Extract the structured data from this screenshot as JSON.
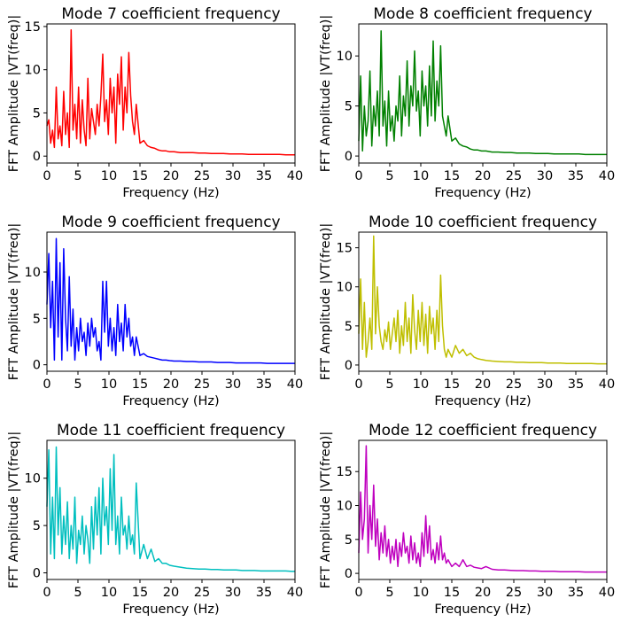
{
  "chart_data": [
    {
      "type": "line",
      "title": "Mode 7 coefficient frequency",
      "xlabel": "Frequency (Hz)",
      "ylabel": "FFT Amplitude |VT(freq)|",
      "xlim": [
        0,
        40
      ],
      "ylim": [
        -0.8,
        15.3
      ],
      "xticks": [
        0,
        5,
        10,
        15,
        20,
        25,
        30,
        35,
        40
      ],
      "yticks": [
        0,
        5,
        10,
        15
      ],
      "color": "#ff0000",
      "series": [
        {
          "x": [
            0,
            0.3,
            0.6,
            0.9,
            1.2,
            1.5,
            1.8,
            2.1,
            2.4,
            2.7,
            3.0,
            3.3,
            3.6,
            3.9,
            4.2,
            4.5,
            4.8,
            5.1,
            5.4,
            5.7,
            6.0,
            6.3,
            6.6,
            6.9,
            7.2,
            7.5,
            7.8,
            8.1,
            8.4,
            8.7,
            9.0,
            9.3,
            9.6,
            9.9,
            10.2,
            10.5,
            10.8,
            11.1,
            11.4,
            11.7,
            12.0,
            12.3,
            12.6,
            12.9,
            13.2,
            13.5,
            13.8,
            14.1,
            14.4,
            15,
            15.6,
            16.2,
            16.8,
            17.4,
            18,
            18.6,
            19.2,
            19.8,
            20.5,
            21.5,
            22.5,
            23.5,
            24.5,
            25.5,
            26.5,
            27.5,
            28.5,
            29.5,
            30.5,
            31.5,
            32.5,
            33.5,
            34.5,
            35.5,
            36.5,
            37.5,
            38.5,
            39.5,
            40
          ],
          "y": [
            3.5,
            4.2,
            1.5,
            3.0,
            1.0,
            8.0,
            2.0,
            3.5,
            1.2,
            7.5,
            2.5,
            5.0,
            1.0,
            14.6,
            3.0,
            6.0,
            2.0,
            8.0,
            1.5,
            6.5,
            3.0,
            1.2,
            9.0,
            2.0,
            5.5,
            4.0,
            2.5,
            6.0,
            3.5,
            7.0,
            11.8,
            4.0,
            6.5,
            2.5,
            9.0,
            5.0,
            8.0,
            1.5,
            9.5,
            6.0,
            11.5,
            3.0,
            8.0,
            5.0,
            12.0,
            7.0,
            4.0,
            2.5,
            6.0,
            1.5,
            1.8,
            1.2,
            1.0,
            0.9,
            0.7,
            0.6,
            0.6,
            0.5,
            0.5,
            0.4,
            0.4,
            0.4,
            0.35,
            0.35,
            0.3,
            0.3,
            0.3,
            0.25,
            0.25,
            0.25,
            0.2,
            0.2,
            0.2,
            0.2,
            0.2,
            0.2,
            0.15,
            0.15,
            0.15
          ]
        }
      ]
    },
    {
      "type": "line",
      "title": "Mode 8 coefficient frequency",
      "xlabel": "Frequency (Hz)",
      "ylabel": "FFT Amplitude |VT(freq)|",
      "xlim": [
        0,
        40
      ],
      "ylim": [
        -0.7,
        13.2
      ],
      "xticks": [
        0,
        5,
        10,
        15,
        20,
        25,
        30,
        35,
        40
      ],
      "yticks": [
        0,
        5,
        10
      ],
      "color": "#008000",
      "series": [
        {
          "x": [
            0,
            0.3,
            0.6,
            0.9,
            1.2,
            1.5,
            1.8,
            2.1,
            2.4,
            2.7,
            3.0,
            3.3,
            3.6,
            3.9,
            4.2,
            4.5,
            4.8,
            5.1,
            5.4,
            5.7,
            6.0,
            6.3,
            6.6,
            6.9,
            7.2,
            7.5,
            7.8,
            8.1,
            8.4,
            8.7,
            9.0,
            9.3,
            9.6,
            9.9,
            10.2,
            10.5,
            10.8,
            11.1,
            11.4,
            11.7,
            12.0,
            12.3,
            12.6,
            12.9,
            13.2,
            13.5,
            13.8,
            14.1,
            14.4,
            15,
            15.6,
            16.2,
            16.8,
            17.4,
            18,
            18.6,
            19.2,
            19.8,
            20.5,
            21.5,
            22.5,
            23.5,
            24.5,
            25.5,
            26.5,
            27.5,
            28.5,
            29.5,
            30.5,
            31.5,
            32.5,
            33.5,
            34.5,
            35.5,
            36.5,
            37.5,
            38.5,
            39.5,
            40
          ],
          "y": [
            1.5,
            8.0,
            0.5,
            5.0,
            2.0,
            3.5,
            8.5,
            1.0,
            5.0,
            3.0,
            6.5,
            2.0,
            12.5,
            3.0,
            5.5,
            1.0,
            6.5,
            2.5,
            4.0,
            1.5,
            5.0,
            3.5,
            8.0,
            2.0,
            6.0,
            4.0,
            9.5,
            3.0,
            7.0,
            5.0,
            10.5,
            4.5,
            6.5,
            2.0,
            8.5,
            5.0,
            7.0,
            3.0,
            9.0,
            4.0,
            11.5,
            3.5,
            7.5,
            5.0,
            11.0,
            4.0,
            3.0,
            2.0,
            4.0,
            1.5,
            1.8,
            1.2,
            1.0,
            0.9,
            0.7,
            0.6,
            0.6,
            0.5,
            0.5,
            0.4,
            0.4,
            0.35,
            0.35,
            0.3,
            0.3,
            0.3,
            0.25,
            0.25,
            0.25,
            0.2,
            0.2,
            0.2,
            0.2,
            0.2,
            0.15,
            0.15,
            0.15,
            0.15,
            0.15
          ]
        }
      ]
    },
    {
      "type": "line",
      "title": "Mode 9 coefficient frequency",
      "xlabel": "Frequency (Hz)",
      "ylabel": "FFT Amplitude |VT(freq)|",
      "xlim": [
        0,
        40
      ],
      "ylim": [
        -0.7,
        14.3
      ],
      "xticks": [
        0,
        5,
        10,
        15,
        20,
        25,
        30,
        35,
        40
      ],
      "yticks": [
        0,
        5,
        10
      ],
      "color": "#0000ff",
      "series": [
        {
          "x": [
            0,
            0.3,
            0.6,
            0.9,
            1.2,
            1.5,
            1.8,
            2.1,
            2.4,
            2.7,
            3.0,
            3.3,
            3.6,
            3.9,
            4.2,
            4.5,
            4.8,
            5.1,
            5.4,
            5.7,
            6.0,
            6.3,
            6.6,
            6.9,
            7.2,
            7.5,
            7.8,
            8.1,
            8.4,
            8.7,
            9.0,
            9.3,
            9.6,
            9.9,
            10.2,
            10.5,
            10.8,
            11.1,
            11.4,
            11.7,
            12.0,
            12.3,
            12.6,
            12.9,
            13.2,
            13.5,
            13.8,
            14.1,
            14.4,
            15,
            15.6,
            16.2,
            16.8,
            17.4,
            18,
            18.6,
            19.2,
            19.8,
            20.5,
            21.5,
            22.5,
            23.5,
            24.5,
            25.5,
            26.5,
            27.5,
            28.5,
            29.5,
            30.5,
            31.5,
            32.5,
            33.5,
            34.5,
            35.5,
            36.5,
            37.5,
            38.5,
            39.5,
            40
          ],
          "y": [
            6.5,
            12.0,
            4.0,
            9.0,
            0.5,
            13.6,
            3.0,
            11.0,
            0.5,
            12.5,
            5.0,
            1.5,
            9.5,
            2.0,
            6.0,
            0.5,
            4.0,
            1.5,
            5.0,
            2.5,
            3.5,
            1.0,
            4.5,
            2.0,
            5.0,
            3.0,
            4.0,
            1.5,
            2.5,
            0.5,
            9.0,
            3.5,
            9.0,
            2.0,
            5.0,
            1.5,
            4.0,
            1.0,
            6.5,
            2.5,
            4.5,
            1.5,
            6.5,
            3.0,
            5.0,
            2.0,
            3.0,
            1.0,
            3.0,
            1.0,
            1.2,
            0.9,
            0.8,
            0.7,
            0.6,
            0.5,
            0.5,
            0.45,
            0.4,
            0.4,
            0.35,
            0.35,
            0.3,
            0.3,
            0.3,
            0.25,
            0.25,
            0.25,
            0.2,
            0.2,
            0.2,
            0.2,
            0.2,
            0.15,
            0.15,
            0.15,
            0.15,
            0.15,
            0.15
          ]
        }
      ]
    },
    {
      "type": "line",
      "title": "Mode 10 coefficient frequency",
      "xlabel": "Frequency (Hz)",
      "ylabel": "FFT Amplitude |VT(freq)|",
      "xlim": [
        0,
        40
      ],
      "ylim": [
        -0.8,
        17.0
      ],
      "xticks": [
        0,
        5,
        10,
        15,
        20,
        25,
        30,
        35,
        40
      ],
      "yticks": [
        0,
        5,
        10,
        15
      ],
      "color": "#bfbf00",
      "series": [
        {
          "x": [
            0,
            0.3,
            0.6,
            0.9,
            1.2,
            1.5,
            1.8,
            2.1,
            2.4,
            2.7,
            3.0,
            3.3,
            3.6,
            3.9,
            4.2,
            4.5,
            4.8,
            5.1,
            5.4,
            5.7,
            6.0,
            6.3,
            6.6,
            6.9,
            7.2,
            7.5,
            7.8,
            8.1,
            8.4,
            8.7,
            9.0,
            9.3,
            9.6,
            9.9,
            10.2,
            10.5,
            10.8,
            11.1,
            11.4,
            11.7,
            12.0,
            12.3,
            12.6,
            12.9,
            13.2,
            13.5,
            13.8,
            14.1,
            14.4,
            15,
            15.6,
            16.2,
            16.8,
            17.4,
            18,
            18.6,
            19.2,
            19.8,
            20.5,
            21.5,
            22.5,
            23.5,
            24.5,
            25.5,
            26.5,
            27.5,
            28.5,
            29.5,
            30.5,
            31.5,
            32.5,
            33.5,
            34.5,
            35.5,
            36.5,
            37.5,
            38.5,
            39.5,
            40
          ],
          "y": [
            4.0,
            11.0,
            2.0,
            8.0,
            1.0,
            3.0,
            6.0,
            2.0,
            16.5,
            4.0,
            10.0,
            5.0,
            3.0,
            2.0,
            4.5,
            3.0,
            5.5,
            2.0,
            4.0,
            6.0,
            3.0,
            7.0,
            1.5,
            5.0,
            2.5,
            8.0,
            3.0,
            6.0,
            1.5,
            9.0,
            4.5,
            2.0,
            7.0,
            3.0,
            8.0,
            2.5,
            6.5,
            1.5,
            7.5,
            4.0,
            6.0,
            2.0,
            7.0,
            3.0,
            11.5,
            5.0,
            2.0,
            1.0,
            2.0,
            1.0,
            2.5,
            1.5,
            2.0,
            1.2,
            1.5,
            1.0,
            0.8,
            0.7,
            0.6,
            0.5,
            0.45,
            0.4,
            0.4,
            0.35,
            0.35,
            0.3,
            0.3,
            0.3,
            0.25,
            0.25,
            0.25,
            0.2,
            0.2,
            0.2,
            0.2,
            0.2,
            0.15,
            0.15,
            0.15
          ]
        }
      ]
    },
    {
      "type": "line",
      "title": "Mode 11 coefficient frequency",
      "xlabel": "Frequency (Hz)",
      "ylabel": "FFT Amplitude |VT(freq)|",
      "xlim": [
        0,
        40
      ],
      "ylim": [
        -0.7,
        14.0
      ],
      "xticks": [
        0,
        5,
        10,
        15,
        20,
        25,
        30,
        35,
        40
      ],
      "yticks": [
        0,
        5,
        10
      ],
      "color": "#00bfbf",
      "series": [
        {
          "x": [
            0,
            0.3,
            0.6,
            0.9,
            1.2,
            1.5,
            1.8,
            2.1,
            2.4,
            2.7,
            3.0,
            3.3,
            3.6,
            3.9,
            4.2,
            4.5,
            4.8,
            5.1,
            5.4,
            5.7,
            6.0,
            6.3,
            6.6,
            6.9,
            7.2,
            7.5,
            7.8,
            8.1,
            8.4,
            8.7,
            9.0,
            9.3,
            9.6,
            9.9,
            10.2,
            10.5,
            10.8,
            11.1,
            11.4,
            11.7,
            12.0,
            12.3,
            12.6,
            12.9,
            13.2,
            13.5,
            13.8,
            14.1,
            14.4,
            15,
            15.6,
            16.2,
            16.8,
            17.4,
            18,
            18.6,
            19.2,
            19.8,
            20.5,
            21.5,
            22.5,
            23.5,
            24.5,
            25.5,
            26.5,
            27.5,
            28.5,
            29.5,
            30.5,
            31.5,
            32.5,
            33.5,
            34.5,
            35.5,
            36.5,
            37.5,
            38.5,
            39.5,
            40
          ],
          "y": [
            7.0,
            13.0,
            2.0,
            8.0,
            1.5,
            13.3,
            4.0,
            9.0,
            2.0,
            6.0,
            3.0,
            7.5,
            1.5,
            5.0,
            2.5,
            8.0,
            1.0,
            4.5,
            3.0,
            6.0,
            2.0,
            5.0,
            3.5,
            1.0,
            7.0,
            2.5,
            8.0,
            4.0,
            9.0,
            2.0,
            10.0,
            5.0,
            7.0,
            3.0,
            11.0,
            4.5,
            12.5,
            3.0,
            6.0,
            2.0,
            8.0,
            4.0,
            5.0,
            2.5,
            6.0,
            3.0,
            4.0,
            2.0,
            9.5,
            1.5,
            3.0,
            1.5,
            2.5,
            1.2,
            1.5,
            1.0,
            1.0,
            0.8,
            0.7,
            0.6,
            0.5,
            0.45,
            0.4,
            0.4,
            0.35,
            0.35,
            0.3,
            0.3,
            0.3,
            0.25,
            0.25,
            0.25,
            0.2,
            0.2,
            0.2,
            0.2,
            0.2,
            0.15,
            0.15
          ]
        }
      ]
    },
    {
      "type": "line",
      "title": "Mode 12 coefficient frequency",
      "xlabel": "Frequency (Hz)",
      "ylabel": "FFT Amplitude |VT(freq)|",
      "xlim": [
        0,
        40
      ],
      "ylim": [
        -0.9,
        19.6
      ],
      "xticks": [
        0,
        5,
        10,
        15,
        20,
        25,
        30,
        35,
        40
      ],
      "yticks": [
        0,
        5,
        10,
        15
      ],
      "color": "#bf00bf",
      "series": [
        {
          "x": [
            0,
            0.3,
            0.6,
            0.9,
            1.2,
            1.5,
            1.8,
            2.1,
            2.4,
            2.7,
            3.0,
            3.3,
            3.6,
            3.9,
            4.2,
            4.5,
            4.8,
            5.1,
            5.4,
            5.7,
            6.0,
            6.3,
            6.6,
            6.9,
            7.2,
            7.5,
            7.8,
            8.1,
            8.4,
            8.7,
            9.0,
            9.3,
            9.6,
            9.9,
            10.2,
            10.5,
            10.8,
            11.1,
            11.4,
            11.7,
            12.0,
            12.3,
            12.6,
            12.9,
            13.2,
            13.5,
            13.8,
            14.1,
            14.4,
            15,
            15.6,
            16.2,
            16.8,
            17.4,
            18,
            18.6,
            19.2,
            19.8,
            20.5,
            21.5,
            22.5,
            23.5,
            24.5,
            25.5,
            26.5,
            27.5,
            28.5,
            29.5,
            30.5,
            31.5,
            32.5,
            33.5,
            34.5,
            35.5,
            36.5,
            37.5,
            38.5,
            39.5,
            40
          ],
          "y": [
            3.0,
            12.0,
            5.0,
            8.0,
            18.8,
            3.0,
            10.0,
            5.0,
            13.0,
            4.0,
            8.0,
            2.0,
            6.0,
            3.0,
            7.0,
            2.5,
            5.0,
            1.5,
            4.0,
            2.0,
            5.0,
            1.0,
            4.5,
            2.5,
            6.0,
            3.0,
            4.0,
            1.5,
            5.5,
            2.0,
            4.5,
            1.5,
            3.0,
            1.0,
            6.0,
            2.5,
            8.5,
            3.0,
            7.0,
            2.0,
            3.5,
            1.5,
            4.5,
            2.0,
            5.5,
            2.0,
            3.0,
            1.5,
            2.0,
            1.0,
            1.5,
            1.0,
            2.0,
            1.0,
            1.2,
            0.9,
            0.8,
            0.7,
            1.0,
            0.6,
            0.5,
            0.5,
            0.45,
            0.4,
            0.4,
            0.35,
            0.35,
            0.3,
            0.3,
            0.3,
            0.25,
            0.25,
            0.25,
            0.25,
            0.2,
            0.2,
            0.2,
            0.2,
            0.2
          ]
        }
      ]
    }
  ]
}
